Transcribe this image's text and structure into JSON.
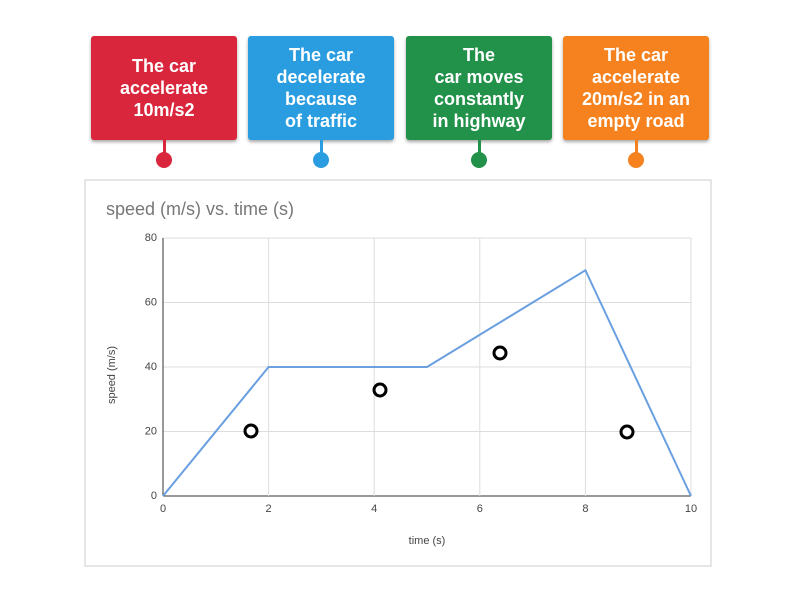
{
  "cards": [
    {
      "lines": [
        "The car",
        "accelerate",
        "10m/s2"
      ],
      "color": "#d9263c"
    },
    {
      "lines": [
        "The car",
        "decelerate",
        "because",
        "of traffic"
      ],
      "color": "#2a9de0"
    },
    {
      "lines": [
        "The",
        "car moves",
        "constantly",
        "in highway"
      ],
      "color": "#22914a"
    },
    {
      "lines": [
        "The car",
        "accelerate",
        "20m/s2 in an",
        "empty road"
      ],
      "color": "#f5821f"
    }
  ],
  "chart_data": {
    "type": "line",
    "title": "speed (m/s) vs. time (s)",
    "x_label": "time (s)",
    "y_label": "speed (m/s)",
    "x": [
      0,
      2,
      5,
      8,
      10
    ],
    "values": [
      0,
      40,
      40,
      70,
      0
    ],
    "color": "#6a9fe0",
    "xlim": [
      0,
      10
    ],
    "xticks": [
      0,
      2,
      4,
      6,
      8,
      10
    ],
    "ylim": [
      0,
      80
    ],
    "yticks": [
      0,
      20,
      40,
      60,
      80
    ],
    "grid": true
  }
}
